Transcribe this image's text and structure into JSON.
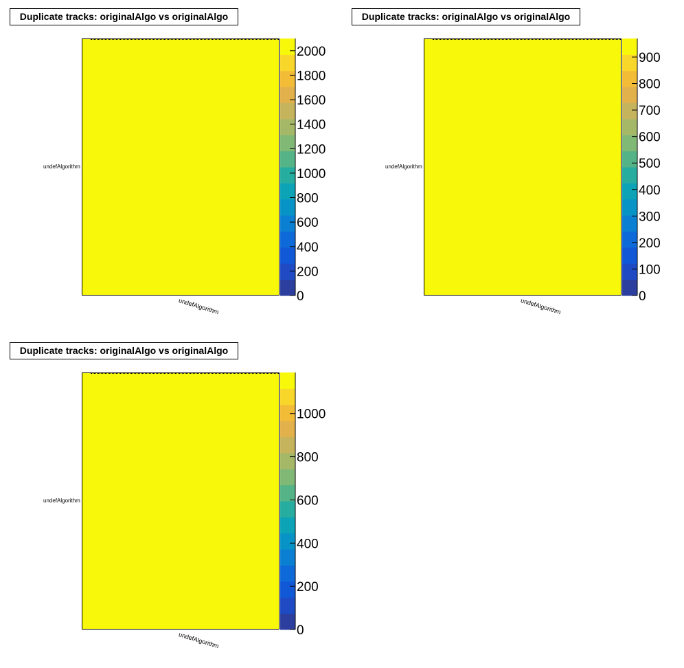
{
  "panels": [
    {
      "title": "Duplicate tracks: originalAlgo vs originalAlgo",
      "x_bin_label": "undefAlgorithm",
      "y_bin_label": "undefAlgorithm",
      "chart_data": {
        "type": "heatmap",
        "x_categories": [
          "undefAlgorithm"
        ],
        "y_categories": [
          "undefAlgorithm"
        ],
        "z": [
          [
            2100
          ]
        ],
        "zlim": [
          0,
          2100
        ],
        "colorbar_ticks": [
          0,
          200,
          400,
          600,
          800,
          1000,
          1200,
          1400,
          1600,
          1800,
          2000
        ]
      }
    },
    {
      "title": "Duplicate tracks: originalAlgo vs originalAlgo",
      "x_bin_label": "undefAlgorithm",
      "y_bin_label": "undefAlgorithm",
      "chart_data": {
        "type": "heatmap",
        "x_categories": [
          "undefAlgorithm"
        ],
        "y_categories": [
          "undefAlgorithm"
        ],
        "z": [
          [
            970
          ]
        ],
        "zlim": [
          0,
          970
        ],
        "colorbar_ticks": [
          0,
          100,
          200,
          300,
          400,
          500,
          600,
          700,
          800,
          900
        ]
      }
    },
    {
      "title": "Duplicate tracks: originalAlgo vs originalAlgo",
      "x_bin_label": "undefAlgorithm",
      "y_bin_label": "undefAlgorithm",
      "chart_data": {
        "type": "heatmap",
        "x_categories": [
          "undefAlgorithm"
        ],
        "y_categories": [
          "undefAlgorithm"
        ],
        "z": [
          [
            1190
          ]
        ],
        "zlim": [
          0,
          1190
        ],
        "colorbar_ticks": [
          0,
          200,
          400,
          600,
          800,
          1000
        ]
      }
    }
  ],
  "palette_colors": [
    "#2c3f9e",
    "#1e4bc4",
    "#1158d6",
    "#0e6ad8",
    "#0b7fd2",
    "#0893c6",
    "#0ca3b6",
    "#26ad9f",
    "#55b487",
    "#80b875",
    "#a5b868",
    "#c6b45c",
    "#e2b14b",
    "#f3bc37",
    "#f9d62a",
    "#f8f80b"
  ]
}
